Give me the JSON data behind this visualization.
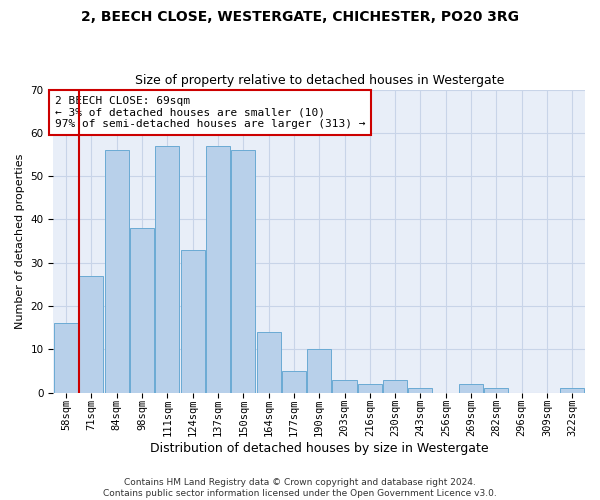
{
  "title1": "2, BEECH CLOSE, WESTERGATE, CHICHESTER, PO20 3RG",
  "title2": "Size of property relative to detached houses in Westergate",
  "xlabel": "Distribution of detached houses by size in Westergate",
  "ylabel": "Number of detached properties",
  "categories": [
    "58sqm",
    "71sqm",
    "84sqm",
    "98sqm",
    "111sqm",
    "124sqm",
    "137sqm",
    "150sqm",
    "164sqm",
    "177sqm",
    "190sqm",
    "203sqm",
    "216sqm",
    "230sqm",
    "243sqm",
    "256sqm",
    "269sqm",
    "282sqm",
    "296sqm",
    "309sqm",
    "322sqm"
  ],
  "values": [
    16,
    27,
    56,
    38,
    57,
    33,
    57,
    56,
    14,
    5,
    10,
    3,
    2,
    3,
    1,
    0,
    2,
    1,
    0,
    0,
    1
  ],
  "bar_color": "#b8d0ea",
  "bar_edge_color": "#6aaad4",
  "vline_color": "#cc0000",
  "vline_x": 0.5,
  "annotation_text": "2 BEECH CLOSE: 69sqm\n← 3% of detached houses are smaller (10)\n97% of semi-detached houses are larger (313) →",
  "annotation_box_color": "#ffffff",
  "annotation_border_color": "#cc0000",
  "ylim": [
    0,
    70
  ],
  "yticks": [
    0,
    10,
    20,
    30,
    40,
    50,
    60,
    70
  ],
  "grid_color": "#c8d4e8",
  "bg_color": "#e8eef8",
  "footnote": "Contains HM Land Registry data © Crown copyright and database right 2024.\nContains public sector information licensed under the Open Government Licence v3.0.",
  "title1_fontsize": 10,
  "title2_fontsize": 9,
  "xlabel_fontsize": 9,
  "ylabel_fontsize": 8,
  "tick_fontsize": 7.5,
  "annotation_fontsize": 8,
  "footnote_fontsize": 6.5
}
